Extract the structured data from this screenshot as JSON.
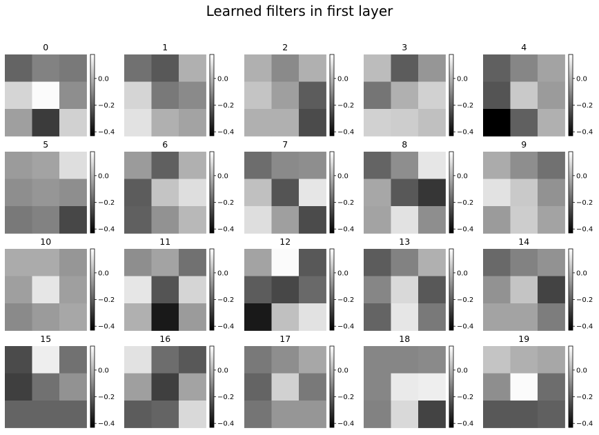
{
  "figure": {
    "title": "Learned filters in first layer",
    "colorbar_ticks": [
      "0.0",
      "−0.2",
      "−0.4"
    ]
  },
  "chart_data": {
    "type": "heatmap",
    "title": "Learned filters in first layer",
    "colormap": "gray",
    "vmin": -0.43,
    "vmax": 0.18,
    "colorbar_tick_values": [
      0.0,
      -0.2,
      -0.4
    ],
    "panels": [
      {
        "label": "0",
        "values": [
          [
            -0.19,
            -0.12,
            -0.14
          ],
          [
            0.08,
            0.17,
            -0.09
          ],
          [
            -0.05,
            -0.29,
            0.07
          ]
        ]
      },
      {
        "label": "1",
        "values": [
          [
            -0.16,
            -0.22,
            -0.01
          ],
          [
            0.08,
            -0.14,
            -0.1
          ],
          [
            0.11,
            -0.01,
            -0.04
          ]
        ]
      },
      {
        "label": "2",
        "values": [
          [
            -0.01,
            -0.1,
            -0.01
          ],
          [
            0.04,
            -0.05,
            -0.21
          ],
          [
            -0.01,
            -0.01,
            -0.25
          ]
        ]
      },
      {
        "label": "3",
        "values": [
          [
            0.02,
            -0.21,
            -0.07
          ],
          [
            -0.15,
            -0.01,
            0.07
          ],
          [
            0.07,
            0.06,
            0.03
          ]
        ]
      },
      {
        "label": "4",
        "values": [
          [
            -0.2,
            -0.11,
            -0.04
          ],
          [
            -0.23,
            0.05,
            -0.06
          ],
          [
            -0.43,
            -0.2,
            -0.01
          ]
        ]
      },
      {
        "label": "5",
        "values": [
          [
            -0.06,
            -0.04,
            0.1
          ],
          [
            -0.09,
            -0.07,
            -0.09
          ],
          [
            -0.14,
            -0.12,
            -0.26
          ]
        ]
      },
      {
        "label": "6",
        "values": [
          [
            -0.06,
            -0.2,
            -0.01
          ],
          [
            -0.21,
            0.04,
            0.1
          ],
          [
            -0.2,
            -0.08,
            0.01
          ]
        ]
      },
      {
        "label": "7",
        "values": [
          [
            -0.17,
            -0.1,
            -0.09
          ],
          [
            0.03,
            -0.23,
            0.12
          ],
          [
            0.1,
            -0.05,
            -0.25
          ]
        ]
      },
      {
        "label": "8",
        "values": [
          [
            -0.19,
            -0.09,
            0.12
          ],
          [
            -0.03,
            -0.22,
            -0.3
          ],
          [
            -0.04,
            0.11,
            -0.09
          ]
        ]
      },
      {
        "label": "9",
        "values": [
          [
            -0.02,
            -0.09,
            -0.16
          ],
          [
            0.11,
            0.05,
            -0.08
          ],
          [
            -0.06,
            0.06,
            -0.04
          ]
        ]
      },
      {
        "label": "10",
        "values": [
          [
            -0.02,
            -0.02,
            -0.07
          ],
          [
            -0.05,
            0.12,
            -0.05
          ],
          [
            -0.1,
            -0.06,
            -0.03
          ]
        ]
      },
      {
        "label": "11",
        "values": [
          [
            -0.09,
            -0.04,
            -0.16
          ],
          [
            0.12,
            -0.23,
            0.08
          ],
          [
            -0.01,
            -0.37,
            -0.06
          ]
        ]
      },
      {
        "label": "12",
        "values": [
          [
            -0.04,
            0.17,
            -0.22
          ],
          [
            -0.21,
            -0.26,
            -0.18
          ],
          [
            -0.37,
            0.03,
            0.11
          ]
        ]
      },
      {
        "label": "13",
        "values": [
          [
            -0.21,
            -0.12,
            -0.01
          ],
          [
            -0.11,
            0.09,
            -0.22
          ],
          [
            -0.19,
            0.12,
            -0.14
          ]
        ]
      },
      {
        "label": "14",
        "values": [
          [
            -0.18,
            -0.12,
            -0.08
          ],
          [
            -0.08,
            0.04,
            -0.27
          ],
          [
            -0.04,
            -0.04,
            -0.13
          ]
        ]
      },
      {
        "label": "15",
        "values": [
          [
            -0.25,
            0.14,
            -0.16
          ],
          [
            -0.28,
            -0.16,
            -0.08
          ],
          [
            -0.19,
            -0.19,
            -0.19
          ]
        ]
      },
      {
        "label": "16",
        "values": [
          [
            0.11,
            -0.17,
            -0.22
          ],
          [
            -0.05,
            -0.28,
            -0.04
          ],
          [
            -0.21,
            -0.19,
            0.09
          ]
        ]
      },
      {
        "label": "17",
        "values": [
          [
            -0.14,
            -0.09,
            -0.03
          ],
          [
            -0.19,
            0.07,
            -0.14
          ],
          [
            -0.15,
            -0.07,
            -0.07
          ]
        ]
      },
      {
        "label": "18",
        "values": [
          [
            -0.11,
            -0.11,
            -0.1
          ],
          [
            -0.11,
            0.13,
            0.14
          ],
          [
            -0.12,
            0.09,
            -0.27
          ]
        ]
      },
      {
        "label": "19",
        "values": [
          [
            0.04,
            -0.01,
            -0.03
          ],
          [
            -0.09,
            0.17,
            -0.17
          ],
          [
            -0.22,
            -0.22,
            -0.2
          ]
        ]
      }
    ]
  }
}
